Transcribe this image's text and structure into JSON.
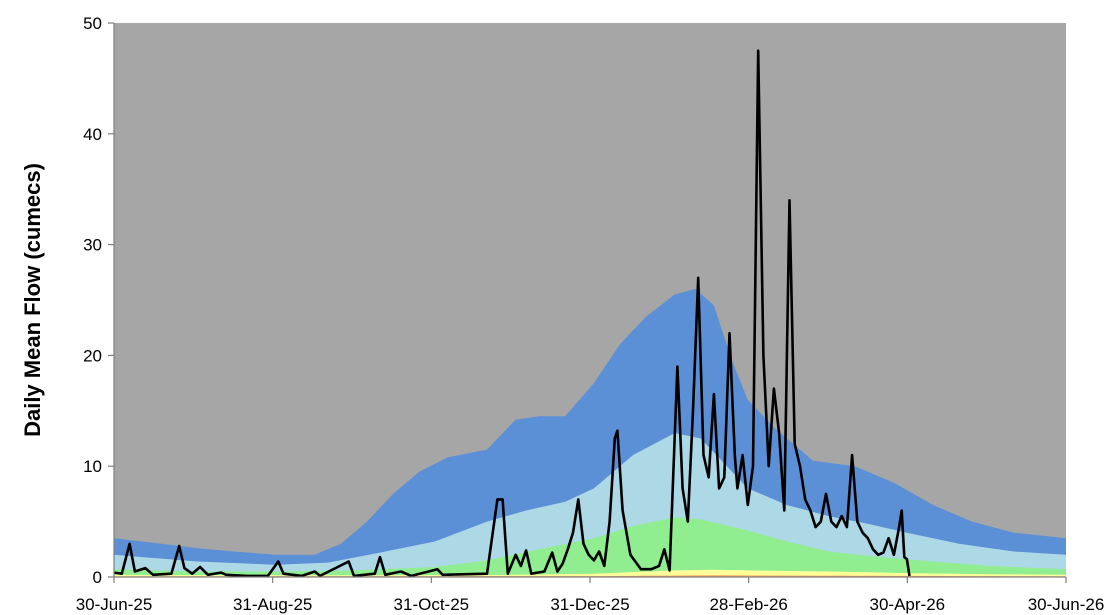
{
  "chart_data": {
    "type": "area",
    "title": "",
    "xlabel": "",
    "ylabel": "Daily Mean Flow (cumecs)",
    "ylim": [
      0,
      50
    ],
    "yticks": [
      0,
      10,
      20,
      30,
      40,
      50
    ],
    "xlim": [
      "2025-06-30",
      "2026-06-30"
    ],
    "xticks": [
      "30-Jun-25",
      "31-Aug-25",
      "31-Oct-25",
      "31-Dec-25",
      "28-Feb-26",
      "30-Apr-26",
      "30-Jun-26"
    ],
    "grid": false,
    "legend": "none",
    "background_color": "#a6a6a6",
    "bands": [
      {
        "color": "#5b8fd6",
        "points": [
          [
            "2025-06-30",
            3.5
          ],
          [
            "2025-07-15",
            3.1
          ],
          [
            "2025-08-01",
            2.6
          ],
          [
            "2025-08-15",
            2.3
          ],
          [
            "2025-08-31",
            2.0
          ],
          [
            "2025-09-15",
            2.0
          ],
          [
            "2025-09-25",
            3.0
          ],
          [
            "2025-10-05",
            5.0
          ],
          [
            "2025-10-15",
            7.5
          ],
          [
            "2025-10-25",
            9.5
          ],
          [
            "2025-11-05",
            10.8
          ],
          [
            "2025-11-20",
            11.5
          ],
          [
            "2025-12-01",
            14.2
          ],
          [
            "2025-12-10",
            14.5
          ],
          [
            "2025-12-20",
            14.5
          ],
          [
            "2025-12-31",
            17.5
          ],
          [
            "2026-01-10",
            21.0
          ],
          [
            "2026-01-20",
            23.5
          ],
          [
            "2026-01-31",
            25.5
          ],
          [
            "2026-02-08",
            26.0
          ],
          [
            "2026-02-15",
            24.5
          ],
          [
            "2026-02-22",
            19.5
          ],
          [
            "2026-02-28",
            16.0
          ],
          [
            "2026-03-10",
            13.5
          ],
          [
            "2026-03-25",
            10.5
          ],
          [
            "2026-04-10",
            10.0
          ],
          [
            "2026-04-25",
            8.5
          ],
          [
            "2026-05-10",
            6.5
          ],
          [
            "2026-05-25",
            5.0
          ],
          [
            "2026-06-10",
            4.0
          ],
          [
            "2026-06-30",
            3.5
          ]
        ]
      },
      {
        "color": "#add8e6",
        "points": [
          [
            "2025-06-30",
            2.0
          ],
          [
            "2025-08-01",
            1.4
          ],
          [
            "2025-08-31",
            1.1
          ],
          [
            "2025-09-20",
            1.3
          ],
          [
            "2025-10-10",
            2.2
          ],
          [
            "2025-10-31",
            3.2
          ],
          [
            "2025-11-20",
            5.0
          ],
          [
            "2025-12-05",
            6.0
          ],
          [
            "2025-12-20",
            6.8
          ],
          [
            "2025-12-31",
            8.0
          ],
          [
            "2026-01-15",
            11.0
          ],
          [
            "2026-01-31",
            13.0
          ],
          [
            "2026-02-10",
            12.5
          ],
          [
            "2026-02-20",
            10.0
          ],
          [
            "2026-02-28",
            8.0
          ],
          [
            "2026-03-15",
            6.5
          ],
          [
            "2026-03-31",
            5.5
          ],
          [
            "2026-04-15",
            4.8
          ],
          [
            "2026-04-30",
            4.0
          ],
          [
            "2026-05-20",
            3.0
          ],
          [
            "2026-06-10",
            2.3
          ],
          [
            "2026-06-30",
            2.0
          ]
        ]
      },
      {
        "color": "#90ee90",
        "points": [
          [
            "2025-06-30",
            0.7
          ],
          [
            "2025-07-31",
            0.5
          ],
          [
            "2025-08-31",
            0.5
          ],
          [
            "2025-09-30",
            0.6
          ],
          [
            "2025-10-31",
            0.9
          ],
          [
            "2025-11-20",
            1.5
          ],
          [
            "2025-12-10",
            2.5
          ],
          [
            "2025-12-31",
            3.5
          ],
          [
            "2026-01-15",
            4.6
          ],
          [
            "2026-01-31",
            5.4
          ],
          [
            "2026-02-10",
            5.2
          ],
          [
            "2026-02-28",
            4.2
          ],
          [
            "2026-03-15",
            3.2
          ],
          [
            "2026-03-31",
            2.3
          ],
          [
            "2026-04-15",
            1.9
          ],
          [
            "2026-04-30",
            1.6
          ],
          [
            "2026-05-31",
            1.0
          ],
          [
            "2026-06-30",
            0.7
          ]
        ]
      },
      {
        "color": "#ffff99",
        "points": [
          [
            "2025-06-30",
            0.2
          ],
          [
            "2025-09-30",
            0.15
          ],
          [
            "2025-11-30",
            0.2
          ],
          [
            "2025-12-31",
            0.3
          ],
          [
            "2026-01-31",
            0.6
          ],
          [
            "2026-02-15",
            0.65
          ],
          [
            "2026-02-28",
            0.6
          ],
          [
            "2026-03-31",
            0.5
          ],
          [
            "2026-04-30",
            0.35
          ],
          [
            "2026-05-31",
            0.25
          ],
          [
            "2026-06-30",
            0.2
          ]
        ]
      },
      {
        "color": "#f4a460",
        "points": [
          [
            "2025-06-30",
            0.05
          ],
          [
            "2025-12-31",
            0.08
          ],
          [
            "2026-02-15",
            0.15
          ],
          [
            "2026-04-30",
            0.1
          ],
          [
            "2026-06-30",
            0.05
          ]
        ]
      }
    ],
    "series": [
      {
        "color": "#000000",
        "points": [
          [
            "2025-06-30",
            0.4
          ],
          [
            "2025-07-03",
            0.3
          ],
          [
            "2025-07-06",
            3.0
          ],
          [
            "2025-07-08",
            0.5
          ],
          [
            "2025-07-12",
            0.8
          ],
          [
            "2025-07-15",
            0.2
          ],
          [
            "2025-07-22",
            0.3
          ],
          [
            "2025-07-25",
            2.8
          ],
          [
            "2025-07-27",
            0.8
          ],
          [
            "2025-07-30",
            0.3
          ],
          [
            "2025-08-02",
            0.9
          ],
          [
            "2025-08-05",
            0.2
          ],
          [
            "2025-08-10",
            0.4
          ],
          [
            "2025-08-12",
            0.2
          ],
          [
            "2025-08-20",
            0.1
          ],
          [
            "2025-08-28",
            0.1
          ],
          [
            "2025-09-01",
            1.4
          ],
          [
            "2025-09-03",
            0.3
          ],
          [
            "2025-09-10",
            0.1
          ],
          [
            "2025-09-15",
            0.5
          ],
          [
            "2025-09-17",
            0.1
          ],
          [
            "2025-09-28",
            1.4
          ],
          [
            "2025-09-30",
            0.1
          ],
          [
            "2025-10-08",
            0.3
          ],
          [
            "2025-10-10",
            1.8
          ],
          [
            "2025-10-12",
            0.2
          ],
          [
            "2025-10-18",
            0.5
          ],
          [
            "2025-10-22",
            0.1
          ],
          [
            "2025-11-01",
            0.7
          ],
          [
            "2025-11-03",
            0.2
          ],
          [
            "2025-11-20",
            0.3
          ],
          [
            "2025-11-24",
            7.0
          ],
          [
            "2025-11-26",
            7.0
          ],
          [
            "2025-11-28",
            0.3
          ],
          [
            "2025-12-01",
            2.0
          ],
          [
            "2025-12-03",
            1.0
          ],
          [
            "2025-12-05",
            2.4
          ],
          [
            "2025-12-07",
            0.3
          ],
          [
            "2025-12-12",
            0.5
          ],
          [
            "2025-12-15",
            2.2
          ],
          [
            "2025-12-17",
            0.5
          ],
          [
            "2025-12-19",
            1.2
          ],
          [
            "2025-12-21",
            2.5
          ],
          [
            "2025-12-23",
            4.0
          ],
          [
            "2025-12-25",
            7.0
          ],
          [
            "2025-12-27",
            3.0
          ],
          [
            "2025-12-29",
            2.0
          ],
          [
            "2025-12-31",
            1.5
          ],
          [
            "2026-01-02",
            2.3
          ],
          [
            "2026-01-04",
            1.0
          ],
          [
            "2026-01-06",
            5.0
          ],
          [
            "2026-01-08",
            12.5
          ],
          [
            "2026-01-09",
            13.2
          ],
          [
            "2026-01-11",
            6.0
          ],
          [
            "2026-01-14",
            2.0
          ],
          [
            "2026-01-18",
            0.7
          ],
          [
            "2026-01-22",
            0.7
          ],
          [
            "2026-01-25",
            1.0
          ],
          [
            "2026-01-27",
            2.5
          ],
          [
            "2026-01-29",
            0.6
          ],
          [
            "2026-02-01",
            19.0
          ],
          [
            "2026-02-03",
            8.0
          ],
          [
            "2026-02-05",
            5.0
          ],
          [
            "2026-02-07",
            15.0
          ],
          [
            "2026-02-09",
            27.0
          ],
          [
            "2026-02-11",
            11.0
          ],
          [
            "2026-02-13",
            9.0
          ],
          [
            "2026-02-15",
            16.5
          ],
          [
            "2026-02-17",
            8.0
          ],
          [
            "2026-02-19",
            9.0
          ],
          [
            "2026-02-21",
            22.0
          ],
          [
            "2026-02-23",
            11.0
          ],
          [
            "2026-02-24",
            8.0
          ],
          [
            "2026-02-26",
            11.0
          ],
          [
            "2026-02-28",
            6.5
          ],
          [
            "2026-03-02",
            10.0
          ],
          [
            "2026-03-04",
            47.5
          ],
          [
            "2026-03-06",
            20.0
          ],
          [
            "2026-03-08",
            10.0
          ],
          [
            "2026-03-10",
            17.0
          ],
          [
            "2026-03-12",
            13.0
          ],
          [
            "2026-03-14",
            6.0
          ],
          [
            "2026-03-16",
            34.0
          ],
          [
            "2026-03-18",
            12.0
          ],
          [
            "2026-03-20",
            10.0
          ],
          [
            "2026-03-22",
            7.0
          ],
          [
            "2026-03-24",
            6.0
          ],
          [
            "2026-03-26",
            4.5
          ],
          [
            "2026-03-28",
            5.0
          ],
          [
            "2026-03-30",
            7.5
          ],
          [
            "2026-04-01",
            5.0
          ],
          [
            "2026-04-03",
            4.5
          ],
          [
            "2026-04-05",
            5.5
          ],
          [
            "2026-04-07",
            4.5
          ],
          [
            "2026-04-09",
            11.0
          ],
          [
            "2026-04-11",
            5.0
          ],
          [
            "2026-04-13",
            4.0
          ],
          [
            "2026-04-15",
            3.5
          ],
          [
            "2026-04-17",
            2.5
          ],
          [
            "2026-04-19",
            2.0
          ],
          [
            "2026-04-21",
            2.2
          ],
          [
            "2026-04-23",
            3.5
          ],
          [
            "2026-04-25",
            2.0
          ],
          [
            "2026-04-27",
            4.5
          ],
          [
            "2026-04-28",
            6.0
          ],
          [
            "2026-04-29",
            1.8
          ],
          [
            "2026-04-30",
            1.6
          ],
          [
            "2026-05-01",
            0.1
          ]
        ]
      }
    ]
  }
}
